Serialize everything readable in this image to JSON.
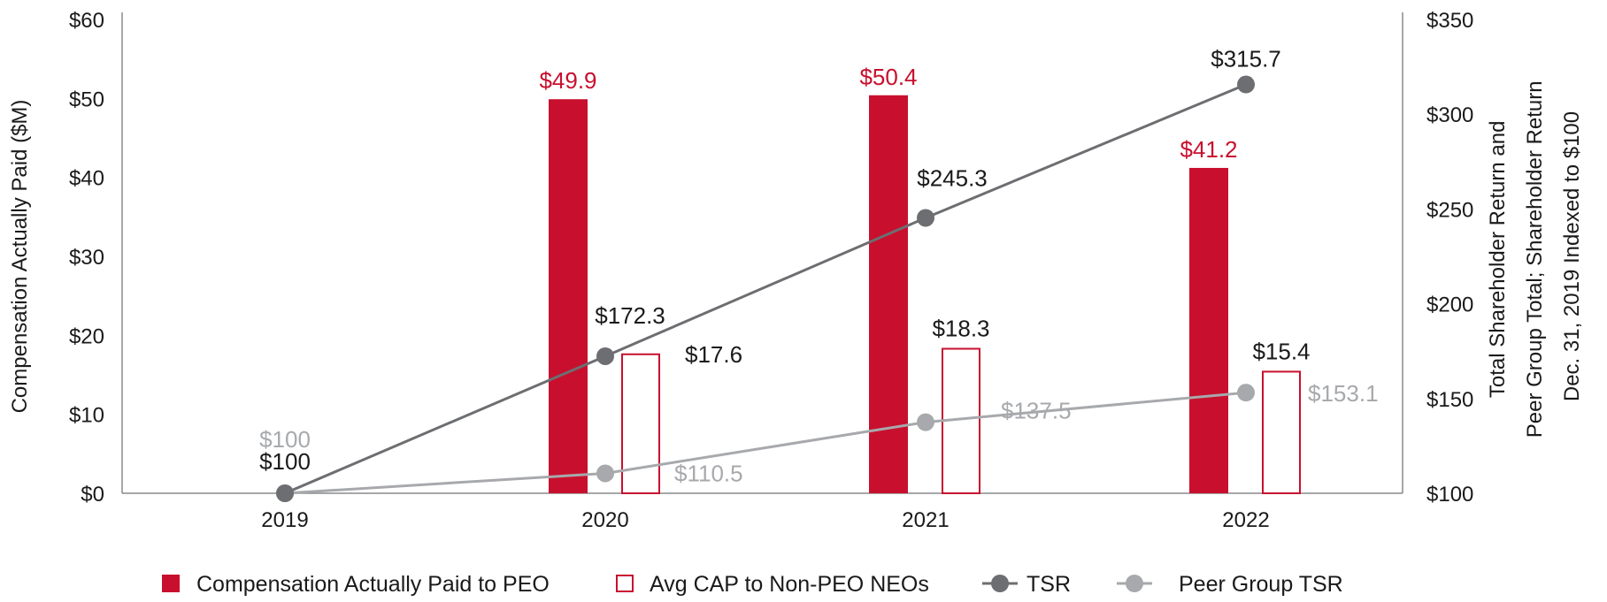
{
  "colors": {
    "peo": "#c8102e",
    "tsr": "#6d6e71",
    "peer": "#a7a9ac",
    "axis": "#8a8a8a",
    "text": "#1a1a1a"
  },
  "chart_data": {
    "type": "bar+line",
    "categories": [
      "2019",
      "2020",
      "2021",
      "2022"
    ],
    "left_axis": {
      "title": "Compensation Actually Paid ($M)",
      "range": [
        0,
        60
      ],
      "ticks": [
        0,
        10,
        20,
        30,
        40,
        50,
        60
      ],
      "tick_labels": [
        "$0",
        "$10",
        "$20",
        "$30",
        "$40",
        "$50",
        "$60"
      ]
    },
    "right_axis": {
      "title_lines": [
        "Total Shareholder Return and",
        "Peer Group Total; Shareholder Return",
        "Dec. 31, 2019 Indexed to $100"
      ],
      "range": [
        100,
        350
      ],
      "ticks": [
        100,
        150,
        200,
        250,
        300,
        350
      ],
      "tick_labels": [
        "$100",
        "$150",
        "$200",
        "$250",
        "$300",
        "$350"
      ]
    },
    "series": [
      {
        "name": "Compensation Actually Paid to PEO",
        "kind": "bar-filled",
        "axis": "left",
        "values": [
          null,
          49.9,
          50.4,
          41.2
        ],
        "labels": [
          "",
          "$49.9",
          "$50.4",
          "$41.2"
        ]
      },
      {
        "name": "Avg CAP to Non-PEO NEOs",
        "kind": "bar-outline",
        "axis": "left",
        "values": [
          null,
          17.6,
          18.3,
          15.4
        ],
        "labels": [
          "",
          "$17.6",
          "$18.3",
          "$15.4"
        ]
      },
      {
        "name": "TSR",
        "kind": "line",
        "axis": "right",
        "values": [
          100,
          172.3,
          245.3,
          315.7
        ],
        "labels": [
          "$100",
          "$172.3",
          "$245.3",
          "$315.7"
        ]
      },
      {
        "name": "Peer Group TSR",
        "kind": "line",
        "axis": "right",
        "values": [
          100,
          110.5,
          137.5,
          153.1
        ],
        "labels": [
          "$100",
          "$110.5",
          "$137.5",
          "$153.1"
        ]
      }
    ],
    "legend": [
      "Compensation Actually Paid to PEO",
      "Avg CAP to Non-PEO NEOs",
      "TSR",
      "Peer Group TSR"
    ],
    "legend_position": "bottom"
  }
}
